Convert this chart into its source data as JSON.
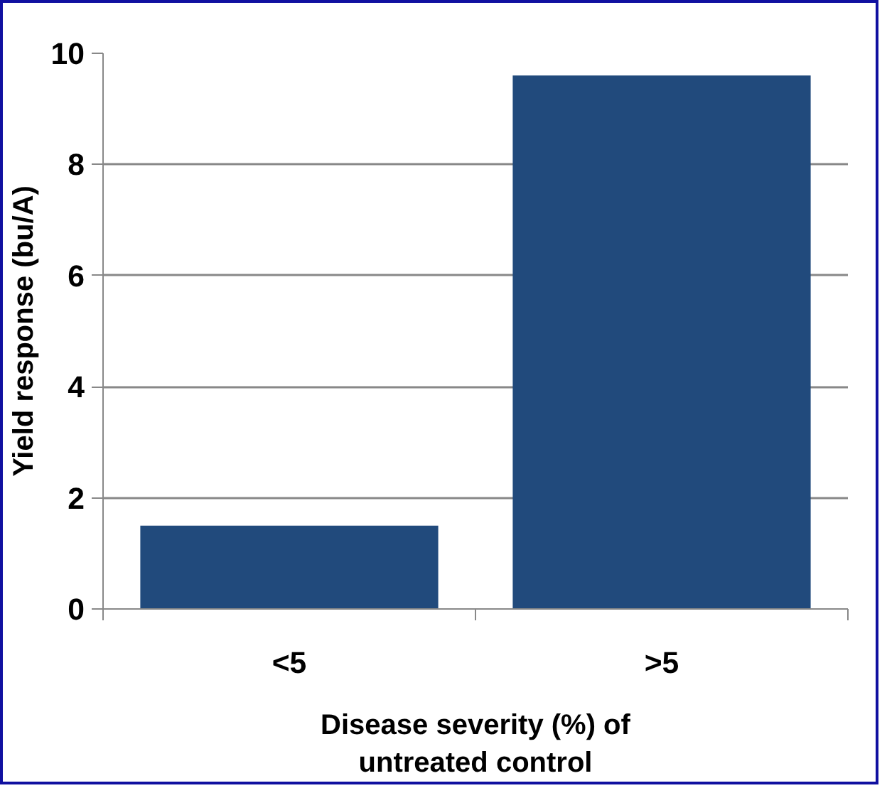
{
  "chart_data": {
    "type": "bar",
    "categories": [
      "<5",
      ">5"
    ],
    "values": [
      1.5,
      9.6
    ],
    "color": "#214a7c",
    "xlabel": "Disease severity (%) of\nuntreated control",
    "ylabel": "Yield response (bu/A)",
    "ylim": [
      0,
      10
    ],
    "yticks": [
      0,
      2,
      4,
      6,
      8,
      10
    ],
    "grid": "y"
  }
}
